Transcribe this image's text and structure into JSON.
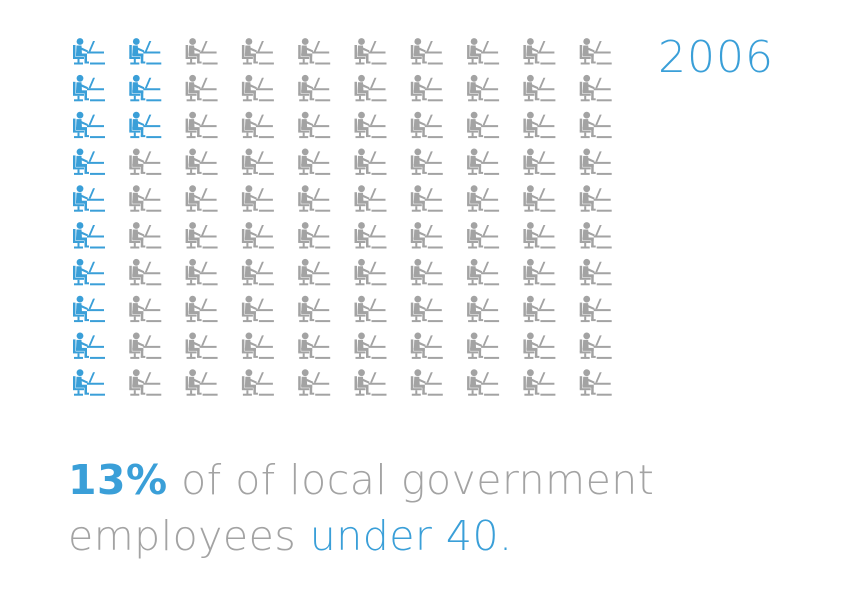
{
  "year": "2006",
  "colors": {
    "highlight": "#3a9fd8",
    "muted": "#a3a3a3",
    "background": "#ffffff"
  },
  "icon": "person-at-desk-icon",
  "caption": {
    "percent": "13%",
    "line1_rest": " of of local government",
    "line2_start": "employees ",
    "line2_highlight": "under 40."
  },
  "chart_data": {
    "type": "pictograph",
    "total_units": 100,
    "highlighted_units": 13,
    "highlighted_percent": 13,
    "rows": 10,
    "columns": 10,
    "fill_order": "column-major, top to bottom starting at left column",
    "series": [
      {
        "name": "under 40",
        "value": 13,
        "color": "#3a9fd8"
      },
      {
        "name": "",
        "value": 87,
        "color": "#a3a3a3"
      }
    ]
  }
}
